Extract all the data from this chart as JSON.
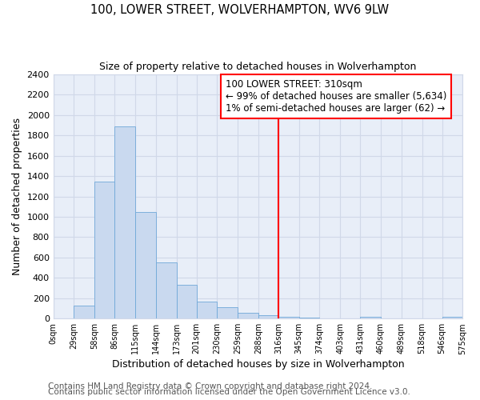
{
  "title": "100, LOWER STREET, WOLVERHAMPTON, WV6 9LW",
  "subtitle": "Size of property relative to detached houses in Wolverhampton",
  "xlabel": "Distribution of detached houses by size in Wolverhampton",
  "ylabel": "Number of detached properties",
  "bar_edges": [
    0,
    29,
    58,
    86,
    115,
    144,
    173,
    201,
    230,
    259,
    288,
    316,
    345,
    374,
    403,
    431,
    460,
    489,
    518,
    546,
    575
  ],
  "bar_heights": [
    0,
    125,
    1350,
    1890,
    1050,
    550,
    335,
    165,
    110,
    60,
    30,
    20,
    10,
    5,
    2,
    15,
    2,
    0,
    0,
    15
  ],
  "bar_color": "#c9d9ef",
  "bar_edge_color": "#6fa8d8",
  "vline_x": 316,
  "vline_color": "red",
  "annotation_line1": "100 LOWER STREET: 310sqm",
  "annotation_line2": "← 99% of detached houses are smaller (5,634)",
  "annotation_line3": "1% of semi-detached houses are larger (62) →",
  "ylim": [
    0,
    2400
  ],
  "xlim": [
    0,
    575
  ],
  "tick_positions": [
    0,
    29,
    58,
    86,
    115,
    144,
    173,
    201,
    230,
    259,
    288,
    316,
    345,
    374,
    403,
    431,
    460,
    489,
    518,
    546,
    575
  ],
  "tick_labels": [
    "0sqm",
    "29sqm",
    "58sqm",
    "86sqm",
    "115sqm",
    "144sqm",
    "173sqm",
    "201sqm",
    "230sqm",
    "259sqm",
    "288sqm",
    "316sqm",
    "345sqm",
    "374sqm",
    "403sqm",
    "431sqm",
    "460sqm",
    "489sqm",
    "518sqm",
    "546sqm",
    "575sqm"
  ],
  "footer1": "Contains HM Land Registry data © Crown copyright and database right 2024.",
  "footer2": "Contains public sector information licensed under the Open Government Licence v3.0.",
  "fig_bg_color": "#ffffff",
  "plot_bg_color": "#e8eef8",
  "grid_color": "#d0d8e8",
  "title_fontsize": 10.5,
  "subtitle_fontsize": 9,
  "axis_label_fontsize": 9,
  "tick_fontsize": 7,
  "footer_fontsize": 7.5,
  "annot_fontsize": 8.5
}
